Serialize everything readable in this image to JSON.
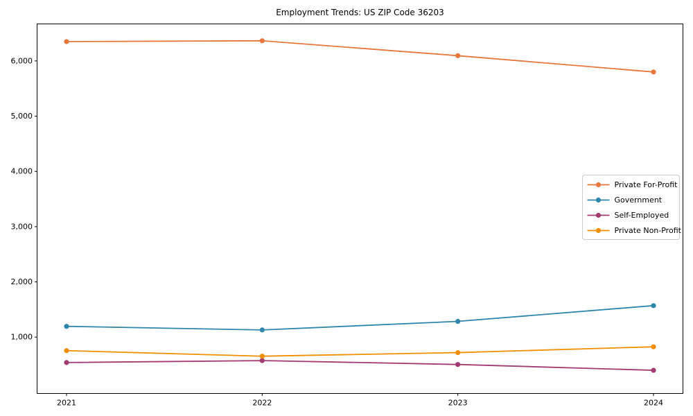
{
  "title": "Employment Trends: US ZIP Code 36203",
  "chart_data": {
    "type": "line",
    "title": "Employment Trends: US ZIP Code 36203",
    "x": [
      2021,
      2022,
      2023,
      2024
    ],
    "x_tick_labels": [
      "2021",
      "2022",
      "2023",
      "2024"
    ],
    "series": [
      {
        "name": "Private For-Profit",
        "color": "#E8773C",
        "values": [
          6350,
          6365,
          6095,
          5800
        ]
      },
      {
        "name": "Government",
        "color": "#2E86AB",
        "values": [
          1195,
          1130,
          1285,
          1570
        ]
      },
      {
        "name": "Self-Employed",
        "color": "#A23B72",
        "values": [
          540,
          575,
          505,
          400
        ]
      },
      {
        "name": "Private Non-Profit",
        "color": "#F18F01",
        "values": [
          755,
          655,
          720,
          825
        ]
      }
    ],
    "yticks": {
      "values": [
        1000,
        2000,
        3000,
        4000,
        5000,
        6000
      ],
      "labels": [
        "1,000",
        "2,000",
        "3,000",
        "4,000",
        "5,000",
        "6,000"
      ]
    },
    "ylim": [
      -20,
      6670
    ],
    "grid": false,
    "marker": "circle",
    "legend": {
      "position": "center-right",
      "entries": [
        "Private For-Profit",
        "Government",
        "Self-Employed",
        "Private Non-Profit"
      ]
    },
    "xlabel": "",
    "ylabel": ""
  },
  "style": {
    "spine_color": "#000000",
    "background": "#ffffff",
    "legend_border": "#cccccc"
  }
}
